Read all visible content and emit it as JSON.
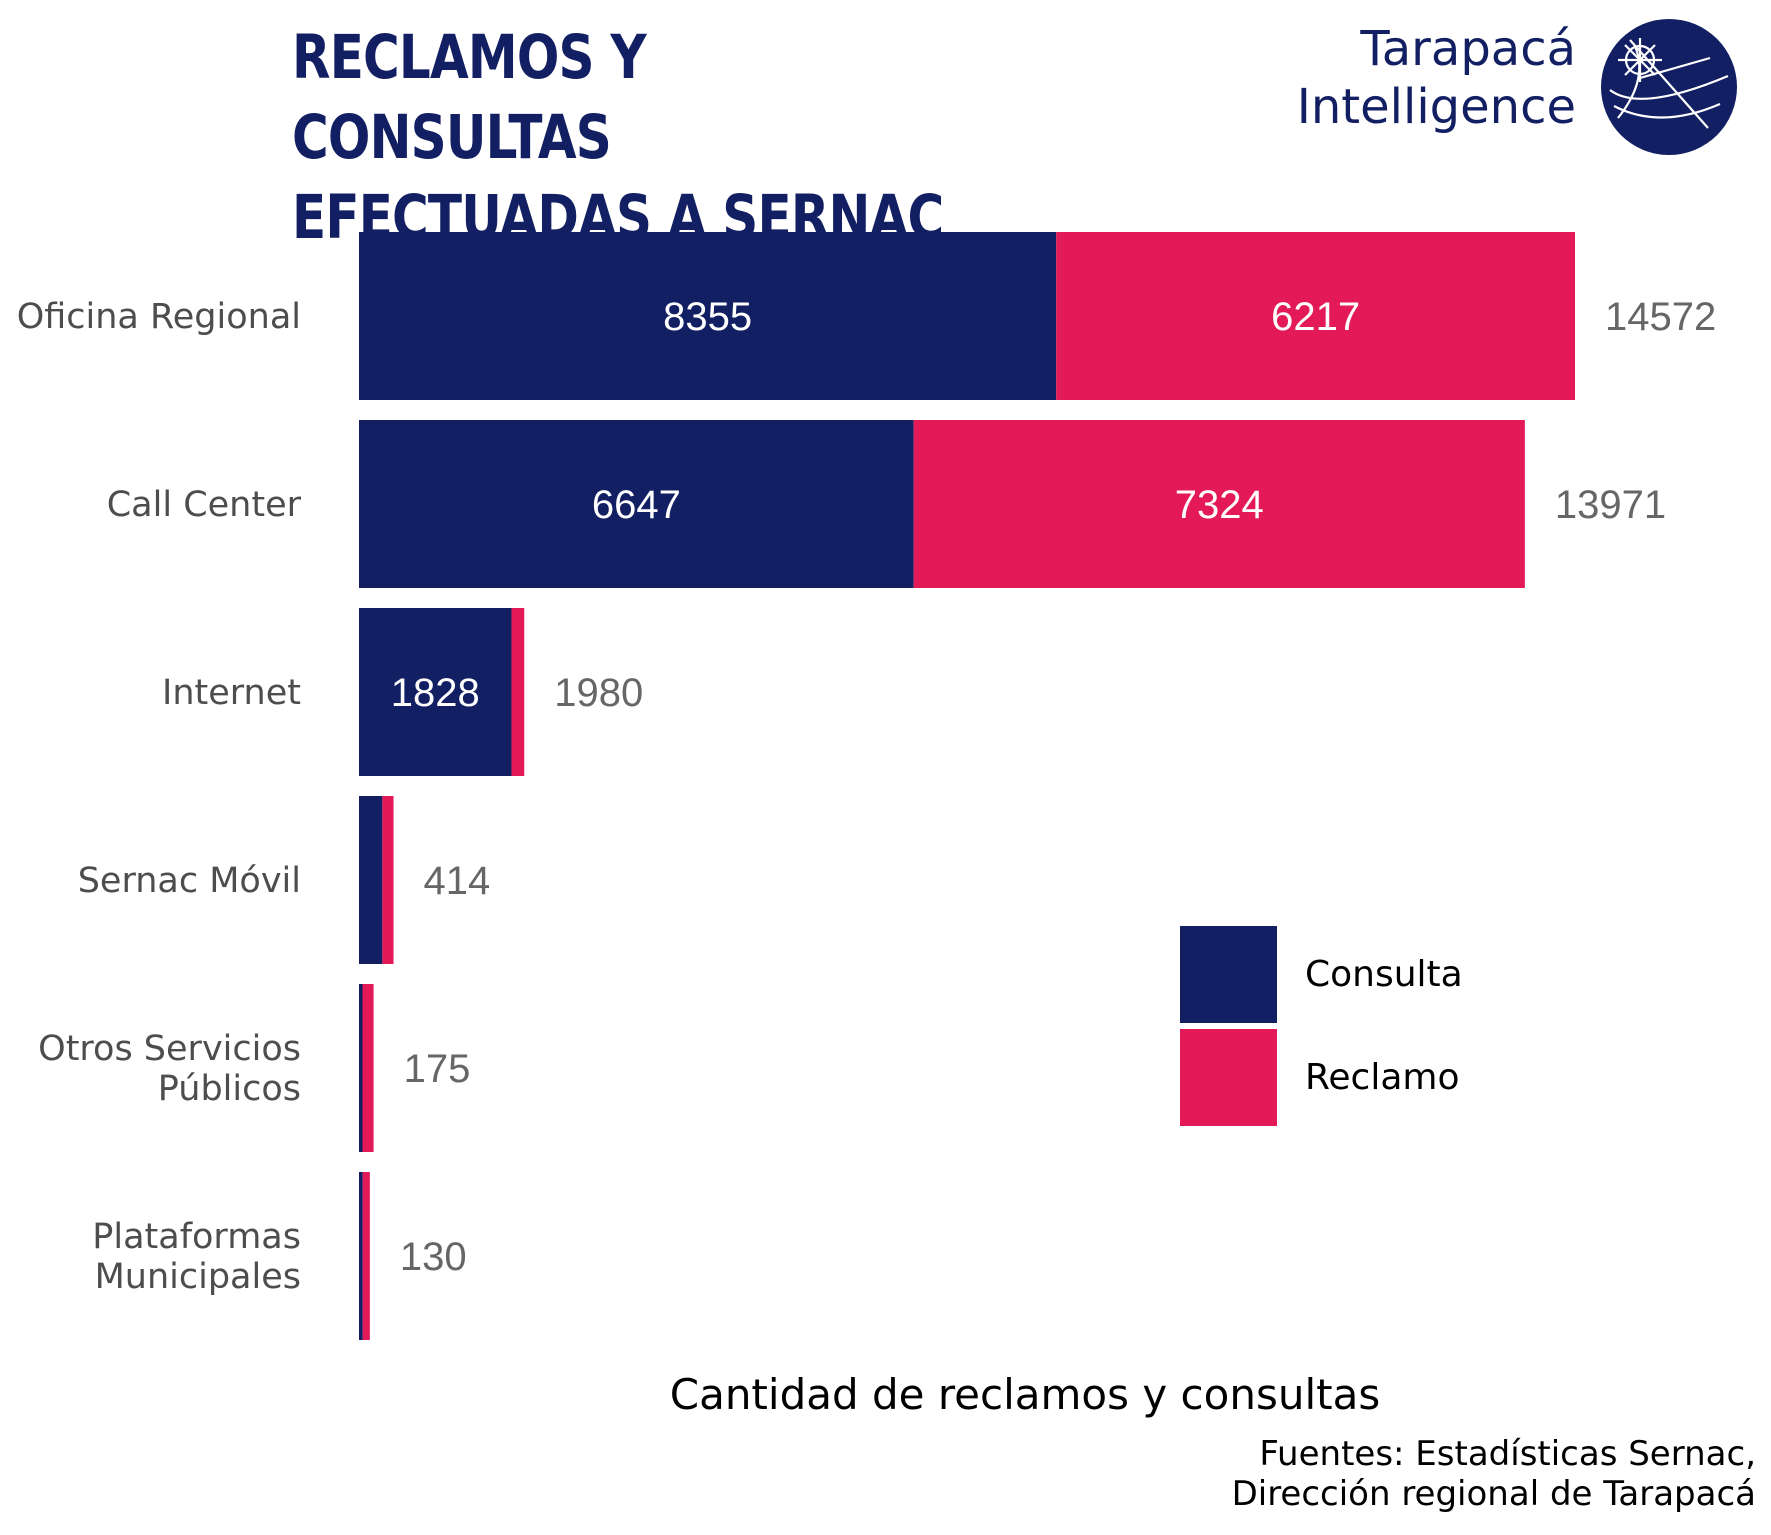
{
  "header": {
    "title_line1": "RECLAMOS Y CONSULTAS",
    "title_line2": "EFECTUADAS A SERNAC",
    "brand_line1": "Tarapacá",
    "brand_line2": "Intelligence"
  },
  "colors": {
    "consulta": "#131f63",
    "reclamo": "#e31a57",
    "brand": "#131f63"
  },
  "chart_data": {
    "type": "bar",
    "orientation": "horizontal",
    "stacked": true,
    "categories": [
      "Oficina Regional",
      "Call Center",
      "Internet",
      "Sernac Móvil",
      "Otros Servicios\nPúblicos",
      "Plataformas\nMunicipales"
    ],
    "series": [
      {
        "name": "Consulta",
        "values": [
          8355,
          6647,
          1828,
          280,
          42,
          45
        ]
      },
      {
        "name": "Reclamo",
        "values": [
          6217,
          7324,
          152,
          134,
          133,
          85
        ]
      }
    ],
    "totals": [
      14572,
      13971,
      1980,
      414,
      175,
      130
    ],
    "segment_labels_shown": [
      [
        true,
        true
      ],
      [
        true,
        true
      ],
      [
        true,
        false
      ],
      [
        false,
        false
      ],
      [
        false,
        false
      ],
      [
        false,
        false
      ]
    ],
    "xlabel": "Cantidad de reclamos y consultas",
    "ylabel": "",
    "xlim": [
      0,
      16000
    ],
    "grid": false,
    "legend": "right"
  },
  "legend": {
    "items": [
      {
        "label": "Consulta",
        "color": "#131f63"
      },
      {
        "label": "Reclamo",
        "color": "#e31a57"
      }
    ]
  },
  "source": {
    "line1": "Fuentes: Estadísticas Sernac,",
    "line2": "Dirección regional de Tarapacá"
  }
}
